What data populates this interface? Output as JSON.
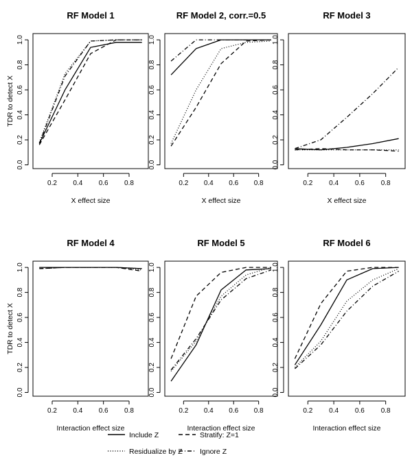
{
  "chart_data": {
    "type": "line",
    "y_axis_label": "TDR to detect X",
    "legend": {
      "placement": "bottom-center",
      "entries": [
        {
          "label": "Include Z",
          "style": "solid"
        },
        {
          "label": "Stratify: Z=1",
          "style": "dashed"
        },
        {
          "label": "Residualize by Z",
          "style": "dotted"
        },
        {
          "label": "Ignore Z",
          "style": "dotdash"
        }
      ]
    },
    "panels": [
      {
        "title": "RF Model 1",
        "xlabel": "X effect size",
        "x": [
          0.1,
          0.3,
          0.5,
          0.7,
          0.9
        ],
        "xlim": [
          0.05,
          0.95
        ],
        "ylim": [
          -0.03,
          1.05
        ],
        "xticks": [
          "0.2",
          "0.4",
          "0.6",
          "0.8"
        ],
        "yticks": [
          "0.0",
          "0.2",
          "0.4",
          "0.6",
          "0.8",
          "1.0"
        ],
        "series": [
          {
            "name": "Include Z",
            "style": "solid",
            "values": [
              0.17,
              0.6,
              0.94,
              0.98,
              0.98
            ]
          },
          {
            "name": "Stratify: Z=1",
            "style": "dashed",
            "values": [
              0.16,
              0.52,
              0.89,
              1.0,
              1.0
            ]
          },
          {
            "name": "Residualize by Z",
            "style": "dotted",
            "values": [
              0.18,
              0.73,
              0.99,
              1.0,
              1.0
            ]
          },
          {
            "name": "Ignore Z",
            "style": "dotdash",
            "values": [
              0.17,
              0.71,
              0.99,
              1.0,
              1.0
            ]
          }
        ]
      },
      {
        "title": "RF Model 2, corr.=0.5",
        "xlabel": "X effect size",
        "x": [
          0.1,
          0.3,
          0.5,
          0.7,
          0.9
        ],
        "xlim": [
          0.05,
          0.95
        ],
        "ylim": [
          -0.03,
          1.05
        ],
        "xticks": [
          "0.2",
          "0.4",
          "0.6",
          "0.8"
        ],
        "yticks": [
          "0.0",
          "0.2",
          "0.4",
          "0.6",
          "0.8",
          "1.0"
        ],
        "series": [
          {
            "name": "Include Z",
            "style": "solid",
            "values": [
              0.72,
              0.93,
              1.0,
              1.0,
              1.0
            ]
          },
          {
            "name": "Stratify: Z=1",
            "style": "dashed",
            "values": [
              0.15,
              0.46,
              0.81,
              0.99,
              1.0
            ]
          },
          {
            "name": "Residualize by Z",
            "style": "dotted",
            "values": [
              0.17,
              0.6,
              0.93,
              0.98,
              0.99
            ]
          },
          {
            "name": "Ignore Z",
            "style": "dotdash",
            "values": [
              0.83,
              1.0,
              1.0,
              1.0,
              1.0
            ]
          }
        ]
      },
      {
        "title": "RF Model 3",
        "xlabel": "X effect size",
        "x": [
          0.1,
          0.3,
          0.5,
          0.7,
          0.9
        ],
        "xlim": [
          0.05,
          0.95
        ],
        "ylim": [
          -0.03,
          1.05
        ],
        "xticks": [
          "0.2",
          "0.4",
          "0.6",
          "0.8"
        ],
        "yticks": [
          "0.0",
          "0.2",
          "0.4",
          "0.6",
          "0.8",
          "1.0"
        ],
        "series": [
          {
            "name": "Include Z",
            "style": "solid",
            "values": [
              0.13,
              0.12,
              0.14,
              0.17,
              0.21
            ]
          },
          {
            "name": "Stratify: Z=1",
            "style": "dashed",
            "values": [
              0.12,
              0.13,
              0.12,
              0.12,
              0.11
            ]
          },
          {
            "name": "Residualize by Z",
            "style": "dotted",
            "values": [
              0.12,
              0.12,
              0.12,
              0.12,
              0.12
            ]
          },
          {
            "name": "Ignore Z",
            "style": "dotdash",
            "values": [
              0.13,
              0.2,
              0.38,
              0.57,
              0.78
            ]
          }
        ]
      },
      {
        "title": "RF Model 4",
        "xlabel": "Interaction effect size",
        "x": [
          0.1,
          0.3,
          0.5,
          0.7,
          0.9
        ],
        "xlim": [
          0.05,
          0.95
        ],
        "ylim": [
          -0.03,
          1.05
        ],
        "xticks": [
          "0.2",
          "0.4",
          "0.6",
          "0.8"
        ],
        "yticks": [
          "0.0",
          "0.2",
          "0.4",
          "0.6",
          "0.8",
          "1.0"
        ],
        "series": [
          {
            "name": "Include Z",
            "style": "solid",
            "values": [
              1.0,
              1.0,
              1.0,
              1.0,
              0.99
            ]
          },
          {
            "name": "Stratify: Z=1",
            "style": "dashed",
            "values": [
              0.99,
              1.0,
              1.0,
              1.0,
              0.97
            ]
          },
          {
            "name": "Residualize by Z",
            "style": "dotted",
            "values": [
              1.0,
              1.0,
              1.0,
              1.0,
              0.98
            ]
          },
          {
            "name": "Ignore Z",
            "style": "dotdash",
            "values": [
              0.99,
              1.0,
              1.0,
              1.0,
              0.99
            ]
          }
        ]
      },
      {
        "title": "RF Model 5",
        "xlabel": "Interaction effect size",
        "x": [
          0.1,
          0.3,
          0.5,
          0.7,
          0.9
        ],
        "xlim": [
          0.05,
          0.95
        ],
        "ylim": [
          -0.03,
          1.05
        ],
        "xticks": [
          "0.2",
          "0.4",
          "0.6",
          "0.8"
        ],
        "yticks": [
          "0.0",
          "0.2",
          "0.4",
          "0.6",
          "0.8",
          "1.0"
        ],
        "series": [
          {
            "name": "Include Z",
            "style": "solid",
            "values": [
              0.09,
              0.38,
              0.82,
              0.98,
              0.99
            ]
          },
          {
            "name": "Stratify: Z=1",
            "style": "dashed",
            "values": [
              0.27,
              0.77,
              0.96,
              1.0,
              1.0
            ]
          },
          {
            "name": "Residualize by Z",
            "style": "dotted",
            "values": [
              0.17,
              0.41,
              0.77,
              0.94,
              1.0
            ]
          },
          {
            "name": "Ignore Z",
            "style": "dotdash",
            "values": [
              0.18,
              0.43,
              0.74,
              0.91,
              0.98
            ]
          }
        ]
      },
      {
        "title": "RF Model 6",
        "xlabel": "Interaction effect size",
        "x": [
          0.1,
          0.3,
          0.5,
          0.7,
          0.9
        ],
        "xlim": [
          0.05,
          0.95
        ],
        "ylim": [
          -0.03,
          1.05
        ],
        "xticks": [
          "0.2",
          "0.4",
          "0.6",
          "0.8"
        ],
        "yticks": [
          "0.0",
          "0.2",
          "0.4",
          "0.6",
          "0.8",
          "1.0"
        ],
        "series": [
          {
            "name": "Include Z",
            "style": "solid",
            "values": [
              0.22,
              0.54,
              0.9,
              0.99,
              1.0
            ]
          },
          {
            "name": "Stratify: Z=1",
            "style": "dashed",
            "values": [
              0.27,
              0.71,
              0.97,
              1.0,
              1.0
            ]
          },
          {
            "name": "Residualize by Z",
            "style": "dotted",
            "values": [
              0.2,
              0.41,
              0.73,
              0.9,
              0.99
            ]
          },
          {
            "name": "Ignore Z",
            "style": "dotdash",
            "values": [
              0.19,
              0.38,
              0.65,
              0.85,
              0.97
            ]
          }
        ]
      }
    ]
  }
}
